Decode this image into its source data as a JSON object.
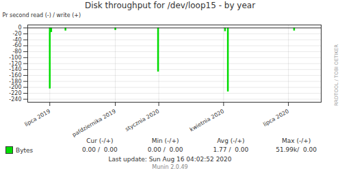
{
  "chart_data": {
    "type": "bar",
    "title": "Disk throughput for /dev/loop15 - by year",
    "ylabel": "Pr second read (-) / write (+)",
    "x": [
      1564617600,
      1564790400,
      1566518400,
      1572566400,
      1577750400,
      1585872000,
      1586217600,
      1594252800
    ],
    "series": [
      {
        "name": "Bytes",
        "color": "#00dd00",
        "values": [
          -205,
          -15,
          -10,
          -8,
          -148,
          -12,
          -215,
          -10
        ]
      }
    ],
    "xlim": [
      1561939200,
      1597536000
    ],
    "xticks": [
      {
        "value": 1564617600,
        "label": "lipca 2019"
      },
      {
        "value": 1572566400,
        "label": "paſdziernika 2019"
      },
      {
        "value": 1577836800,
        "label": "stycznia 2020"
      },
      {
        "value": 1585699200,
        "label": "kwietnia 2020"
      },
      {
        "value": 1593561600,
        "label": "lipca 2020"
      }
    ],
    "ylim": [
      -250,
      10
    ],
    "yticks": [
      0,
      -20,
      -40,
      -60,
      -80,
      -100,
      -120,
      -140,
      -160,
      -180,
      -200,
      -220,
      -240
    ],
    "grid": true,
    "legend": "bottom",
    "annotations": [
      "Cur (-/+)",
      "Min (-/+)",
      "Avg (-/+)",
      "Max (-/+)",
      "0.00 /  0.00",
      "0.00 /  0.00",
      "1.77 /  0.00",
      "51.99k/  0.00",
      "Last update: Sun Aug 16 04:02:52 2020",
      "Munin 2.0.49",
      "RRDTOOL / TOBI OETIKER"
    ]
  }
}
